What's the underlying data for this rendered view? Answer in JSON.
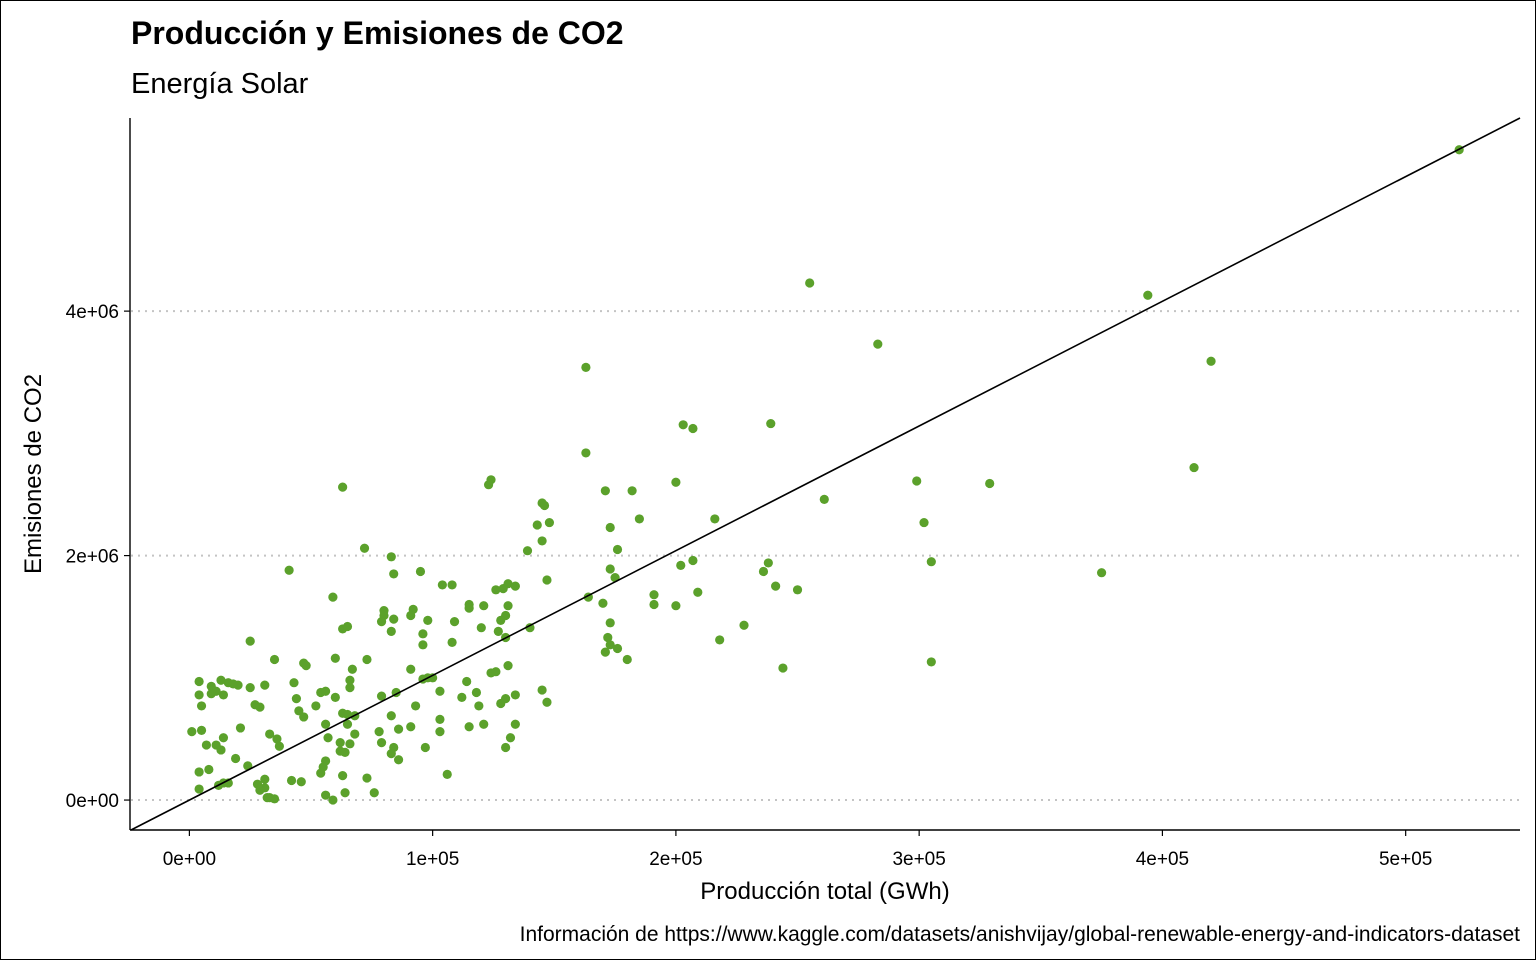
{
  "chart_data": {
    "type": "scatter",
    "title": "Producción y Emisiones de CO2",
    "subtitle": "Energía Solar",
    "xlabel": "Producción total (GWh)",
    "ylabel": "Emisiones de CO2",
    "caption": "Información de https://www.kaggle.com/datasets/anishvijay/global-renewable-energy-and-indicators-dataset",
    "xlim": [
      -24000,
      547000
    ],
    "ylim": [
      -245000,
      5580000
    ],
    "x_ticks": [
      0,
      100000,
      200000,
      300000,
      400000,
      500000
    ],
    "x_tick_labels": [
      "0e+00",
      "1e+05",
      "2e+05",
      "3e+05",
      "4e+05",
      "5e+05"
    ],
    "y_ticks": [
      0,
      2000000,
      4000000
    ],
    "y_tick_labels": [
      "0e+00",
      "2e+06",
      "4e+06"
    ],
    "grid": "horizontal dotted major lines",
    "point_color": "#5BA12B",
    "trend_line": {
      "type": "linear fit",
      "color": "#000000",
      "start": [
        -24000,
        -245000
      ],
      "end": [
        547000,
        5580000
      ]
    },
    "points": [
      [
        522000,
        5320000
      ],
      [
        255000,
        4230000
      ],
      [
        394000,
        4130000
      ],
      [
        283000,
        3730000
      ],
      [
        420000,
        3590000
      ],
      [
        163000,
        3540000
      ],
      [
        239000,
        3080000
      ],
      [
        203000,
        3070000
      ],
      [
        207000,
        3040000
      ],
      [
        163000,
        2840000
      ],
      [
        413000,
        2720000
      ],
      [
        299000,
        2610000
      ],
      [
        200000,
        2600000
      ],
      [
        329000,
        2590000
      ],
      [
        123000,
        2580000
      ],
      [
        124000,
        2620000
      ],
      [
        63000,
        2560000
      ],
      [
        171000,
        2530000
      ],
      [
        182000,
        2530000
      ],
      [
        261000,
        2460000
      ],
      [
        145000,
        2430000
      ],
      [
        146000,
        2410000
      ],
      [
        185000,
        2300000
      ],
      [
        216000,
        2300000
      ],
      [
        148000,
        2270000
      ],
      [
        143000,
        2250000
      ],
      [
        302000,
        2270000
      ],
      [
        173000,
        2230000
      ],
      [
        145000,
        2120000
      ],
      [
        72000,
        2060000
      ],
      [
        139000,
        2040000
      ],
      [
        176000,
        2050000
      ],
      [
        83000,
        1990000
      ],
      [
        305000,
        1950000
      ],
      [
        238000,
        1940000
      ],
      [
        202000,
        1920000
      ],
      [
        207000,
        1960000
      ],
      [
        173000,
        1890000
      ],
      [
        236000,
        1870000
      ],
      [
        41000,
        1880000
      ],
      [
        375000,
        1860000
      ],
      [
        84000,
        1850000
      ],
      [
        95000,
        1870000
      ],
      [
        175000,
        1820000
      ],
      [
        147000,
        1800000
      ],
      [
        131000,
        1770000
      ],
      [
        134000,
        1750000
      ],
      [
        104000,
        1760000
      ],
      [
        108000,
        1760000
      ],
      [
        241000,
        1750000
      ],
      [
        129000,
        1730000
      ],
      [
        126000,
        1720000
      ],
      [
        250000,
        1720000
      ],
      [
        209000,
        1700000
      ],
      [
        191000,
        1680000
      ],
      [
        164000,
        1660000
      ],
      [
        59000,
        1660000
      ],
      [
        170000,
        1610000
      ],
      [
        191000,
        1600000
      ],
      [
        200000,
        1590000
      ],
      [
        115000,
        1600000
      ],
      [
        121000,
        1590000
      ],
      [
        115000,
        1570000
      ],
      [
        131000,
        1590000
      ],
      [
        80000,
        1550000
      ],
      [
        92000,
        1560000
      ],
      [
        80000,
        1510000
      ],
      [
        84000,
        1480000
      ],
      [
        91000,
        1510000
      ],
      [
        130000,
        1510000
      ],
      [
        98000,
        1470000
      ],
      [
        109000,
        1460000
      ],
      [
        128000,
        1470000
      ],
      [
        79000,
        1460000
      ],
      [
        173000,
        1450000
      ],
      [
        228000,
        1430000
      ],
      [
        120000,
        1410000
      ],
      [
        140000,
        1410000
      ],
      [
        63000,
        1400000
      ],
      [
        83000,
        1380000
      ],
      [
        127000,
        1380000
      ],
      [
        65000,
        1420000
      ],
      [
        96000,
        1360000
      ],
      [
        172000,
        1330000
      ],
      [
        218000,
        1310000
      ],
      [
        108000,
        1290000
      ],
      [
        25000,
        1300000
      ],
      [
        96000,
        1270000
      ],
      [
        173000,
        1270000
      ],
      [
        130000,
        1330000
      ],
      [
        176000,
        1240000
      ],
      [
        171000,
        1210000
      ],
      [
        180000,
        1150000
      ],
      [
        35000,
        1150000
      ],
      [
        60000,
        1160000
      ],
      [
        73000,
        1150000
      ],
      [
        47000,
        1120000
      ],
      [
        48000,
        1100000
      ],
      [
        305000,
        1130000
      ],
      [
        244000,
        1080000
      ],
      [
        67000,
        1070000
      ],
      [
        91000,
        1070000
      ],
      [
        124000,
        1040000
      ],
      [
        126000,
        1050000
      ],
      [
        131000,
        1100000
      ],
      [
        96000,
        990000
      ],
      [
        98000,
        1000000
      ],
      [
        100000,
        1000000
      ],
      [
        4000,
        970000
      ],
      [
        13000,
        980000
      ],
      [
        16000,
        960000
      ],
      [
        9000,
        930000
      ],
      [
        20000,
        940000
      ],
      [
        18000,
        950000
      ],
      [
        66000,
        980000
      ],
      [
        114000,
        970000
      ],
      [
        43000,
        960000
      ],
      [
        31000,
        940000
      ],
      [
        25000,
        920000
      ],
      [
        11000,
        890000
      ],
      [
        9000,
        870000
      ],
      [
        14000,
        860000
      ],
      [
        4000,
        860000
      ],
      [
        66000,
        920000
      ],
      [
        85000,
        880000
      ],
      [
        103000,
        890000
      ],
      [
        118000,
        880000
      ],
      [
        145000,
        900000
      ],
      [
        112000,
        840000
      ],
      [
        130000,
        830000
      ],
      [
        44000,
        830000
      ],
      [
        54000,
        880000
      ],
      [
        56000,
        890000
      ],
      [
        60000,
        840000
      ],
      [
        79000,
        850000
      ],
      [
        128000,
        790000
      ],
      [
        134000,
        860000
      ],
      [
        147000,
        800000
      ],
      [
        93000,
        770000
      ],
      [
        119000,
        770000
      ],
      [
        27000,
        780000
      ],
      [
        29000,
        760000
      ],
      [
        5000,
        770000
      ],
      [
        45000,
        730000
      ],
      [
        52000,
        770000
      ],
      [
        63000,
        710000
      ],
      [
        65000,
        700000
      ],
      [
        68000,
        690000
      ],
      [
        83000,
        690000
      ],
      [
        103000,
        660000
      ],
      [
        47000,
        680000
      ],
      [
        121000,
        620000
      ],
      [
        134000,
        620000
      ],
      [
        115000,
        600000
      ],
      [
        91000,
        600000
      ],
      [
        65000,
        620000
      ],
      [
        56000,
        620000
      ],
      [
        21000,
        590000
      ],
      [
        5000,
        570000
      ],
      [
        1000,
        560000
      ],
      [
        78000,
        560000
      ],
      [
        103000,
        560000
      ],
      [
        86000,
        580000
      ],
      [
        33000,
        540000
      ],
      [
        68000,
        540000
      ],
      [
        14000,
        510000
      ],
      [
        132000,
        510000
      ],
      [
        57000,
        510000
      ],
      [
        36000,
        500000
      ],
      [
        7000,
        450000
      ],
      [
        11000,
        450000
      ],
      [
        13000,
        410000
      ],
      [
        37000,
        440000
      ],
      [
        66000,
        460000
      ],
      [
        79000,
        470000
      ],
      [
        62000,
        470000
      ],
      [
        84000,
        430000
      ],
      [
        97000,
        430000
      ],
      [
        130000,
        430000
      ],
      [
        62000,
        400000
      ],
      [
        64000,
        390000
      ],
      [
        83000,
        380000
      ],
      [
        19000,
        340000
      ],
      [
        56000,
        320000
      ],
      [
        86000,
        330000
      ],
      [
        24000,
        280000
      ],
      [
        55000,
        270000
      ],
      [
        8000,
        250000
      ],
      [
        4000,
        230000
      ],
      [
        54000,
        220000
      ],
      [
        106000,
        210000
      ],
      [
        63000,
        200000
      ],
      [
        73000,
        180000
      ],
      [
        31000,
        170000
      ],
      [
        42000,
        160000
      ],
      [
        46000,
        150000
      ],
      [
        16000,
        140000
      ],
      [
        14000,
        140000
      ],
      [
        12000,
        120000
      ],
      [
        28000,
        130000
      ],
      [
        31000,
        100000
      ],
      [
        4000,
        90000
      ],
      [
        29000,
        80000
      ],
      [
        64000,
        60000
      ],
      [
        76000,
        60000
      ],
      [
        56000,
        40000
      ],
      [
        33000,
        20000
      ],
      [
        35000,
        10000
      ],
      [
        59000,
        0
      ],
      [
        32000,
        20000
      ]
    ]
  }
}
